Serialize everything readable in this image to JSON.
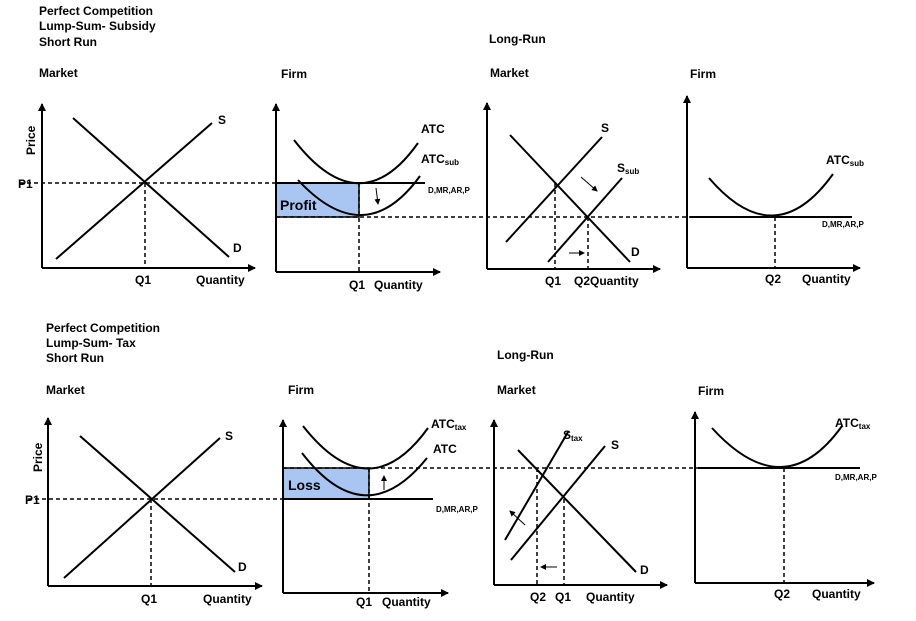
{
  "subsidy": {
    "title_lines": [
      "Perfect Competition",
      "Lump-Sum- Subsidy",
      "Short Run"
    ],
    "long_run": "Long-Run",
    "panels": [
      "Market",
      "Firm",
      "Market",
      "Firm"
    ],
    "axis": {
      "price": "Price",
      "quantity": "Quantity",
      "p1": "P1",
      "q1": "Q1",
      "q2": "Q2",
      "q2quantity": "Q2Quantity"
    },
    "curves": {
      "s": "S",
      "d": "D",
      "atc": "ATC",
      "atc_sub": "ATCsub",
      "atc_main": "ATC",
      "sub_suffix": "sub",
      "s_sub_main": "S",
      "dmrp": "D,MR,AR,P"
    },
    "area": "Profit"
  },
  "tax": {
    "title_lines": [
      "Perfect Competition",
      "Lump-Sum- Tax",
      "Short Run"
    ],
    "long_run": "Long-Run",
    "panels": [
      "Market",
      "Firm",
      "Market",
      "Firm"
    ],
    "axis": {
      "price": "Price",
      "quantity": "Quantity",
      "p1": "P1",
      "q1": "Q1",
      "q2": "Q2"
    },
    "curves": {
      "s": "S",
      "d": "D",
      "atc": "ATC",
      "atc_main": "ATC",
      "tax_suffix": "tax",
      "s_tax_main": "S",
      "dmrp": "D,MR,AR,P"
    },
    "area": "Loss"
  },
  "colors": {
    "shade": "#a9c6f2",
    "line": "#000000"
  }
}
